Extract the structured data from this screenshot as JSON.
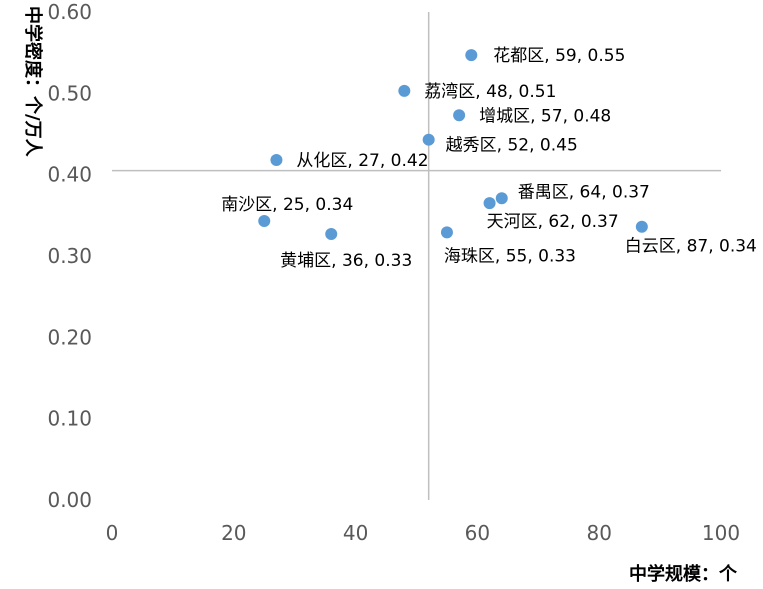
{
  "chart_data": {
    "type": "scatter",
    "xlabel": "中学规模：个",
    "ylabel": "中学密度：个/万人",
    "xlim": [
      0,
      100
    ],
    "ylim": [
      0,
      0.6
    ],
    "x_ticks": [
      "0",
      "20",
      "40",
      "60",
      "80",
      "100"
    ],
    "y_ticks": [
      "0.00",
      "0.10",
      "0.20",
      "0.30",
      "0.40",
      "0.50",
      "0.60"
    ],
    "grid": false,
    "reference_lines": {
      "x": 52,
      "y": 0.405
    },
    "point_color": "#5b9bd5",
    "ref_line_color": "#bfbfbf",
    "points": [
      {
        "label": "花都区, 59, 0.55",
        "x": 59,
        "y": 0.547
      },
      {
        "label": "荔湾区, 48, 0.51",
        "x": 48,
        "y": 0.503
      },
      {
        "label": "增城区, 57, 0.48",
        "x": 57,
        "y": 0.473
      },
      {
        "label": "越秀区, 52, 0.45",
        "x": 52,
        "y": 0.443
      },
      {
        "label": "从化区, 27, 0.42",
        "x": 27,
        "y": 0.418
      },
      {
        "label": "番禺区, 64, 0.37",
        "x": 64,
        "y": 0.371
      },
      {
        "label": "天河区, 62, 0.37",
        "x": 62,
        "y": 0.365
      },
      {
        "label": "南沙区, 25, 0.34",
        "x": 25,
        "y": 0.343
      },
      {
        "label": "黄埔区, 36, 0.33",
        "x": 36,
        "y": 0.327
      },
      {
        "label": "海珠区, 55, 0.33",
        "x": 55,
        "y": 0.329
      },
      {
        "label": "白云区, 87, 0.34",
        "x": 87,
        "y": 0.336
      }
    ]
  }
}
